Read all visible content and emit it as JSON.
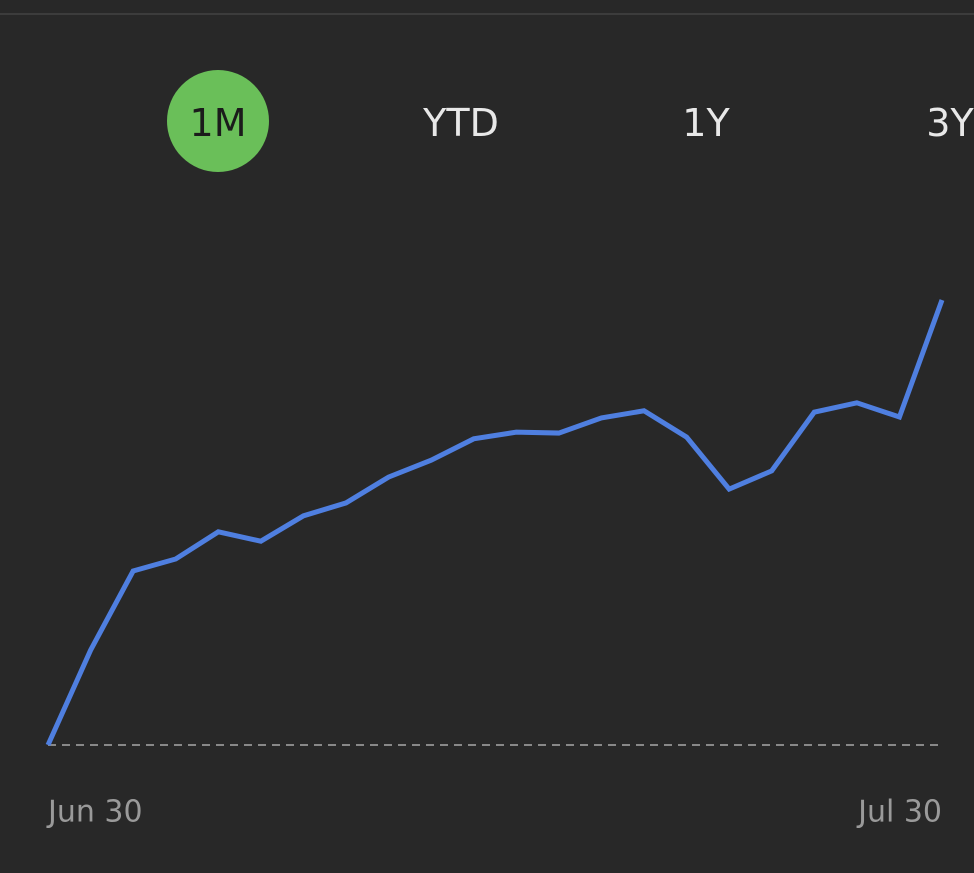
{
  "tabs": {
    "items": [
      "1M",
      "YTD",
      "1Y",
      "3Y"
    ],
    "selected": 0
  },
  "chart_data": {
    "type": "line",
    "color": "#4f7fe0",
    "baseline": "dashed",
    "x_labels": [
      "Jun 30",
      "Jul 30"
    ],
    "values": [
      0,
      21.3,
      39.1,
      41.8,
      47.9,
      45.8,
      51.5,
      54.4,
      60.2,
      64.0,
      68.8,
      70.3,
      70.1,
      73.5,
      75.1,
      69.2,
      57.5,
      61.6,
      74.8,
      76.9,
      73.7,
      100
    ]
  }
}
